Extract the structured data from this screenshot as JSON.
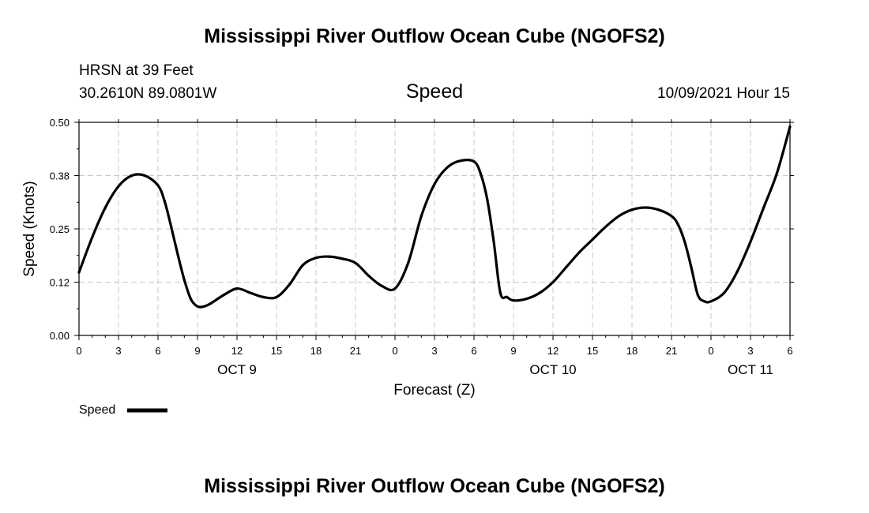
{
  "chart_data": {
    "type": "line",
    "title": "Mississippi River Outflow Ocean Cube (NGOFS2)",
    "footer_title": "Mississippi River Outflow Ocean Cube (NGOFS2)",
    "station": "HRSN at 39 Feet",
    "location": "30.2610N  89.0801W",
    "variable": "Speed",
    "timestamp": "10/09/2021 Hour 15",
    "xlabel": "Forecast (Z)",
    "ylabel": "Speed (Knots)",
    "ylim": [
      0,
      0.5
    ],
    "xlim": [
      0,
      54
    ],
    "y_ticks": [
      "0.00",
      "0.12",
      "0.25",
      "0.38",
      "0.50"
    ],
    "x_tick_values": [
      0,
      3,
      6,
      9,
      12,
      15,
      18,
      21,
      24,
      27,
      30,
      33,
      36,
      39,
      42,
      45,
      48,
      51,
      54
    ],
    "x_tick_labels": [
      "0",
      "3",
      "6",
      "9",
      "12",
      "15",
      "18",
      "21",
      "0",
      "3",
      "6",
      "9",
      "12",
      "15",
      "18",
      "21",
      "0",
      "3",
      "6"
    ],
    "day_labels": [
      {
        "text": "OCT 9",
        "hour": 12
      },
      {
        "text": "OCT 10",
        "hour": 36
      },
      {
        "text": "OCT 11",
        "hour": 51
      }
    ],
    "grid": true,
    "legend": "bottom-left",
    "series": [
      {
        "name": "Speed",
        "color": "#000000",
        "x": [
          0,
          1,
          2,
          3,
          4,
          5,
          6,
          6.5,
          7,
          7.5,
          8,
          8.5,
          9,
          9.5,
          10,
          11,
          12,
          13,
          14,
          15,
          16,
          17,
          18,
          19,
          20,
          21,
          22,
          23,
          24,
          25,
          26,
          27,
          28,
          29,
          30,
          30.5,
          31,
          31.5,
          32,
          32.5,
          33,
          34,
          35,
          36,
          37,
          38,
          39,
          40,
          41,
          42,
          43,
          44,
          45,
          45.5,
          46,
          46.5,
          47,
          47.5,
          48,
          49,
          50,
          51,
          52,
          53,
          54
        ],
        "y": [
          0.148,
          0.23,
          0.3,
          0.35,
          0.375,
          0.375,
          0.352,
          0.315,
          0.255,
          0.19,
          0.13,
          0.085,
          0.068,
          0.068,
          0.075,
          0.095,
          0.11,
          0.1,
          0.09,
          0.09,
          0.12,
          0.165,
          0.182,
          0.185,
          0.18,
          0.17,
          0.14,
          0.116,
          0.11,
          0.17,
          0.28,
          0.355,
          0.395,
          0.41,
          0.408,
          0.38,
          0.32,
          0.22,
          0.1,
          0.09,
          0.082,
          0.086,
          0.1,
          0.125,
          0.16,
          0.195,
          0.225,
          0.255,
          0.28,
          0.295,
          0.3,
          0.295,
          0.28,
          0.26,
          0.22,
          0.16,
          0.095,
          0.08,
          0.08,
          0.1,
          0.15,
          0.22,
          0.3,
          0.38,
          0.49
        ]
      }
    ]
  }
}
